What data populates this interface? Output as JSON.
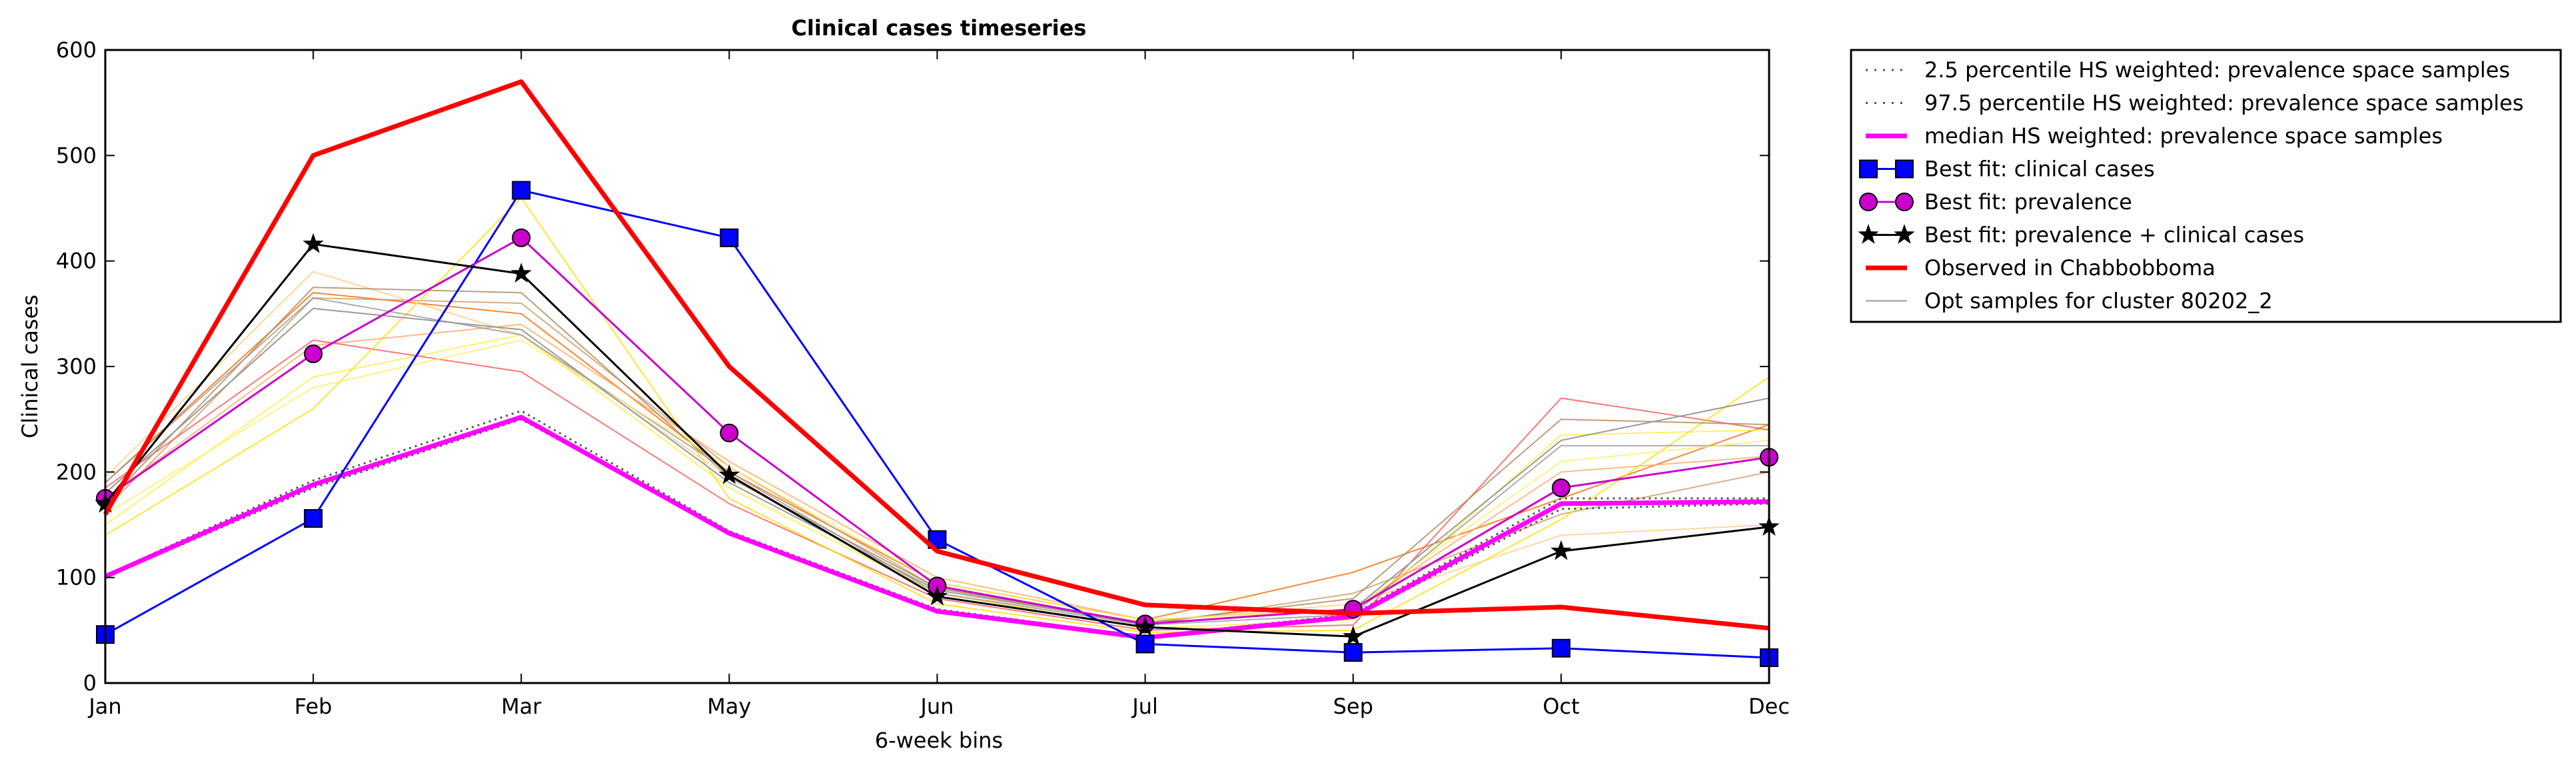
{
  "chart_data": {
    "type": "line",
    "title": "Clinical cases timeseries",
    "xlabel": "6-week bins",
    "ylabel": "Clinical cases",
    "categories": [
      "Jan",
      "Feb",
      "Mar",
      "May",
      "Jun",
      "Jul",
      "Sep",
      "Oct",
      "Dec"
    ],
    "ylim": [
      0,
      600
    ],
    "yticks": [
      0,
      100,
      200,
      300,
      400,
      500,
      600
    ],
    "grid": false,
    "legend_position": "outside-right",
    "series": [
      {
        "name": "2.5 percentile HS weighted: prevalence space samples",
        "style": "dotted",
        "color": "#555555",
        "values": [
          100,
          185,
          250,
          142,
          68,
          42,
          62,
          165,
          170
        ]
      },
      {
        "name": "97.5 percentile HS weighted: prevalence space samples",
        "style": "dotted",
        "color": "#555555",
        "values": [
          102,
          192,
          258,
          144,
          70,
          44,
          65,
          175,
          175
        ]
      },
      {
        "name": "median HS weighted: prevalence space samples",
        "style": "solid",
        "color": "#ff00ff",
        "values": [
          101,
          188,
          252,
          142,
          68,
          43,
          63,
          170,
          172
        ]
      },
      {
        "name": "Best fit: clinical cases",
        "style": "solid",
        "color": "#0000ff",
        "marker": "square",
        "values": [
          46,
          156,
          467,
          422,
          136,
          37,
          29,
          33,
          24
        ]
      },
      {
        "name": "Best fit: prevalence",
        "style": "solid",
        "color": "#cc00cc",
        "marker": "circle",
        "values": [
          175,
          312,
          422,
          237,
          92,
          56,
          70,
          185,
          214
        ]
      },
      {
        "name": "Best fit: prevalence + clinical cases",
        "style": "solid",
        "color": "#000000",
        "marker": "star",
        "values": [
          170,
          416,
          388,
          197,
          82,
          53,
          44,
          125,
          148
        ]
      },
      {
        "name": "Observed in Chabbobboma",
        "style": "solid",
        "color": "#ff0000",
        "values": [
          160,
          500,
          570,
          300,
          125,
          74,
          66,
          72,
          52
        ]
      },
      {
        "name": "Opt samples for cluster 80202_2",
        "style": "solid",
        "color": "#999999",
        "values": [
          180,
          355,
          335,
          190,
          88,
          56,
          70,
          230,
          270
        ]
      }
    ],
    "extra_samples": [
      {
        "color": "#ff6600",
        "values": [
          190,
          370,
          350,
          200,
          95,
          60,
          105,
          175,
          245
        ]
      },
      {
        "color": "#ffee44",
        "values": [
          150,
          290,
          330,
          185,
          85,
          52,
          60,
          235,
          240
        ]
      },
      {
        "color": "#cc9966",
        "values": [
          165,
          365,
          360,
          205,
          90,
          55,
          85,
          160,
          200
        ]
      },
      {
        "color": "#ffaa66",
        "values": [
          175,
          320,
          340,
          210,
          100,
          60,
          70,
          200,
          215
        ]
      },
      {
        "color": "#ff5555",
        "values": [
          185,
          325,
          295,
          170,
          80,
          50,
          55,
          270,
          240
        ]
      },
      {
        "color": "#ffdd00",
        "values": [
          140,
          260,
          460,
          175,
          75,
          48,
          50,
          155,
          290
        ]
      },
      {
        "color": "#ffcc88",
        "values": [
          195,
          390,
          330,
          195,
          85,
          58,
          75,
          140,
          150
        ]
      },
      {
        "color": "#aa8855",
        "values": [
          170,
          375,
          370,
          195,
          90,
          57,
          80,
          250,
          245
        ]
      },
      {
        "color": "#999999",
        "values": [
          190,
          365,
          330,
          200,
          85,
          55,
          65,
          225,
          225
        ]
      },
      {
        "color": "#ffee66",
        "values": [
          160,
          280,
          325,
          205,
          95,
          60,
          70,
          210,
          230
        ]
      }
    ]
  }
}
